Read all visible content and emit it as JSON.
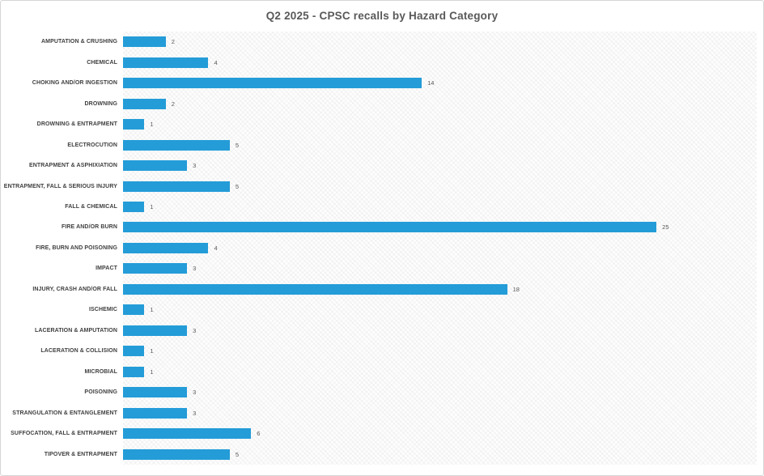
{
  "chart_data": {
    "type": "bar",
    "orientation": "horizontal",
    "title": "Q2 2025 - CPSC recalls by Hazard Category",
    "categories": [
      "AMPUTATION & CRUSHING",
      "CHEMICAL",
      "CHOKING AND/OR INGESTION",
      "DROWNING",
      "DROWNING & ENTRAPMENT",
      "ELECTROCUTION",
      "ENTRAPMENT & ASPHIXIATION",
      "ENTRAPMENT, FALL & SERIOUS INJURY",
      "FALL & CHEMICAL",
      "FIRE AND/OR BURN",
      "FIRE, BURN AND POISONING",
      "IMPACT",
      "INJURY, CRASH AND/OR FALL",
      "ISCHEMIC",
      "LACERATION & AMPUTATION",
      "LACERATION & COLLISION",
      "MICROBIAL",
      "POISONING",
      "STRANGULATION & ENTANGLEMENT",
      "SUFFOCATION, FALL & ENTRAPMENT",
      "TIPOVER & ENTRAPMENT"
    ],
    "values": [
      2,
      4,
      14,
      2,
      1,
      5,
      3,
      5,
      1,
      25,
      4,
      3,
      18,
      1,
      3,
      1,
      1,
      3,
      3,
      6,
      5
    ],
    "xlabel": "",
    "ylabel": "",
    "xlim": [
      0,
      30
    ],
    "grid": false,
    "legend": false,
    "data_labels": true,
    "colors": {
      "bar": "#249CD8",
      "title": "#595959",
      "category_label": "#3f3f3f",
      "value_label": "#595959",
      "frame_border": "#d6d6d6",
      "plot_hatch": "#ededed"
    }
  }
}
